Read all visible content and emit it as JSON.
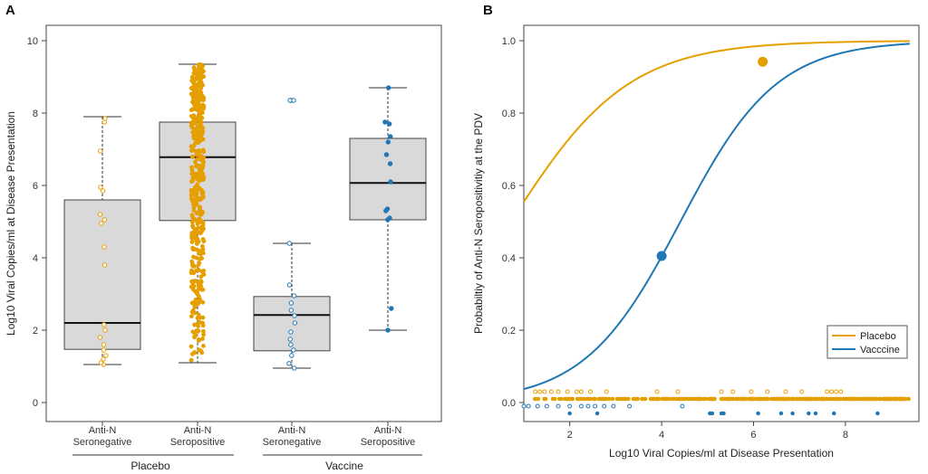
{
  "colors": {
    "placebo": "#E69F00",
    "vaccine": "#1F77B4",
    "box_fill": "#d9d9d9"
  },
  "panel_a": {
    "label": "A",
    "ylabel": "Log10 Viral Copies/ml at Disease Presentation",
    "yticks": [
      "0",
      "2",
      "4",
      "6",
      "8",
      "10"
    ],
    "groups": [
      {
        "line1": "Anti-N",
        "line2": "Seronegative"
      },
      {
        "line1": "Anti-N",
        "line2": "Seropositive"
      },
      {
        "line1": "Anti-N",
        "line2": "Seronegative"
      },
      {
        "line1": "Anti-N",
        "line2": "Seropositive"
      }
    ],
    "arm_labels": [
      "Placebo",
      "Vaccine"
    ]
  },
  "panel_b": {
    "label": "B",
    "ylabel": "Probabiltiy of Anti-N Seropositivitiy at the PDV",
    "xlabel": "Log10 Viral Copies/ml at Disease Presentation",
    "xticks": [
      "2",
      "4",
      "6",
      "8"
    ],
    "yticks": [
      "0.0",
      "0.2",
      "0.4",
      "0.6",
      "0.8",
      "1.0"
    ],
    "legend": [
      "Placebo",
      "Vacccine"
    ]
  },
  "chart_data": [
    {
      "type": "box",
      "ylim": [
        0,
        10
      ],
      "boxes": [
        {
          "arm": "Placebo",
          "group": "Seronegative",
          "color": "placebo",
          "whisker_low": 1.05,
          "q1": 1.47,
          "median": 2.2,
          "q3": 5.6,
          "whisker_high": 7.9
        },
        {
          "arm": "Placebo",
          "group": "Seropositive",
          "color": "placebo",
          "whisker_low": 1.1,
          "q1": 5.03,
          "median": 6.78,
          "q3": 7.75,
          "whisker_high": 9.35
        },
        {
          "arm": "Vaccine",
          "group": "Seronegative",
          "color": "vaccine",
          "whisker_low": 0.95,
          "q1": 1.43,
          "median": 2.42,
          "q3": 2.93,
          "whisker_high": 4.4,
          "outliers": [
            8.35,
            8.35
          ]
        },
        {
          "arm": "Vaccine",
          "group": "Seropositive",
          "color": "vaccine",
          "whisker_low": 2.0,
          "q1": 5.05,
          "median": 6.07,
          "q3": 7.3,
          "whisker_high": 8.7
        }
      ],
      "points": [
        [
          1.05,
          1.1,
          1.2,
          1.3,
          1.45,
          1.6,
          1.8,
          2.0,
          2.15,
          3.8,
          4.3,
          4.95,
          5.05,
          5.2,
          5.85,
          5.95,
          6.95,
          7.75,
          7.85
        ],
        [],
        [
          0.95,
          1.08,
          1.3,
          1.45,
          1.6,
          1.75,
          1.95,
          2.2,
          2.4,
          2.55,
          2.75,
          2.95,
          3.25,
          4.4,
          8.35,
          8.35
        ],
        [
          2.0,
          2.6,
          5.05,
          5.1,
          5.3,
          5.35,
          6.1,
          6.6,
          6.85,
          7.2,
          7.35,
          7.7,
          7.75,
          8.7
        ]
      ],
      "dense_group": {
        "box": 1,
        "n": 430,
        "min": 1.1,
        "max": 9.35
      }
    },
    {
      "type": "line",
      "xlim": [
        1.0,
        9.6
      ],
      "ylim": [
        -0.02,
        1.02
      ],
      "series": [
        {
          "name": "Placebo",
          "color": "placebo",
          "intercept": -0.56,
          "slope": 0.78,
          "x_range": [
            1.0,
            9.4
          ]
        },
        {
          "name": "Vacccine",
          "color": "vaccine",
          "intercept": -4.21,
          "slope": 0.955,
          "x_range": [
            1.0,
            9.4
          ]
        }
      ],
      "group_means": [
        {
          "series": "Placebo",
          "x": 6.2,
          "y": 0.942
        },
        {
          "series": "Vacccine",
          "x": 4.0,
          "y": 0.405
        }
      ],
      "rugs": {
        "placebo_neg": {
          "y": 0.03,
          "x": [
            1.25,
            1.35,
            1.45,
            1.6,
            1.75,
            1.95,
            2.15,
            2.25,
            2.45,
            2.8,
            3.9,
            4.35,
            5.3,
            5.55,
            5.95,
            6.3,
            6.7,
            7.05,
            7.6,
            7.7,
            7.8,
            7.9
          ]
        },
        "placebo_pos": {
          "y": 0.01,
          "n": 420,
          "min": 1.1,
          "max": 9.4
        },
        "vaccine_neg": {
          "y": -0.01,
          "x": [
            1.0,
            1.1,
            1.3,
            1.5,
            1.75,
            2.0,
            2.25,
            2.4,
            2.55,
            2.75,
            2.95,
            3.3,
            4.45
          ]
        },
        "vaccine_pos": {
          "y": -0.03,
          "x": [
            2.0,
            2.6,
            5.05,
            5.1,
            5.3,
            5.35,
            6.1,
            6.6,
            6.85,
            7.2,
            7.35,
            7.75,
            8.7
          ]
        }
      }
    }
  ]
}
